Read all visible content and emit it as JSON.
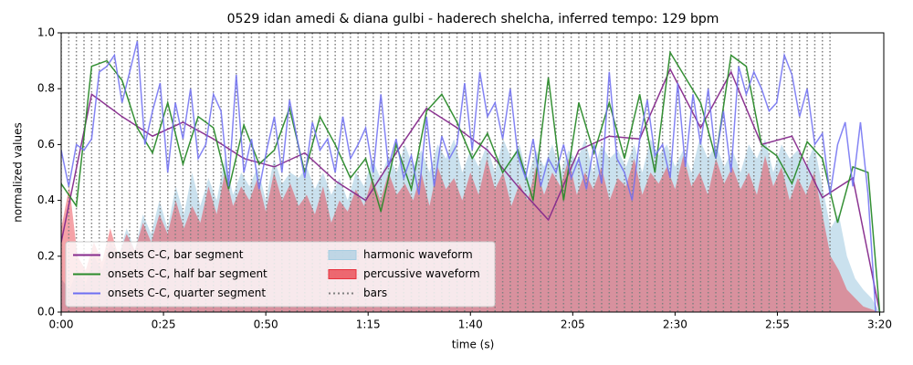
{
  "chart_data": {
    "type": "line",
    "title": "0529 idan amedi & diana gulbi - haderech shelcha, inferred tempo: 129 bpm",
    "x_label": "time (s)",
    "y_label": "normalized values",
    "xlim": [
      0,
      201
    ],
    "ylim": [
      0,
      1
    ],
    "xticks": [
      {
        "value": 0,
        "label": "0:00"
      },
      {
        "value": 25,
        "label": "0:25"
      },
      {
        "value": 50,
        "label": "0:50"
      },
      {
        "value": 75,
        "label": "1:15"
      },
      {
        "value": 100,
        "label": "1:40"
      },
      {
        "value": 125,
        "label": "2:05"
      },
      {
        "value": 150,
        "label": "2:30"
      },
      {
        "value": 175,
        "label": "2:55"
      },
      {
        "value": 200,
        "label": "3:20"
      }
    ],
    "yticks": [
      {
        "value": 0,
        "label": "0.0"
      },
      {
        "value": 0.2,
        "label": "0.2"
      },
      {
        "value": 0.4,
        "label": "0.4"
      },
      {
        "value": 0.6,
        "label": "0.6"
      },
      {
        "value": 0.8,
        "label": "0.8"
      },
      {
        "value": 1,
        "label": "1.0"
      }
    ],
    "grid": false,
    "legend": "lower left",
    "series": [
      {
        "name": "onsets C-C, bar segment",
        "style": "line",
        "color": "#862a8c",
        "x": [
          0,
          7.44,
          14.88,
          22.32,
          29.76,
          37.2,
          44.64,
          52.08,
          59.52,
          66.96,
          74.4,
          81.84,
          89.28,
          96.72,
          104.16,
          111.6,
          119.04,
          126.48,
          133.92,
          141.36,
          148.8,
          156.24,
          163.68,
          171.12,
          178.56,
          186,
          193.44,
          200
        ],
        "values": [
          0.25,
          0.78,
          0.7,
          0.63,
          0.68,
          0.62,
          0.55,
          0.52,
          0.57,
          0.47,
          0.4,
          0.57,
          0.73,
          0.66,
          0.58,
          0.45,
          0.33,
          0.58,
          0.63,
          0.62,
          0.87,
          0.66,
          0.86,
          0.6,
          0.63,
          0.41,
          0.48,
          0.0
        ]
      },
      {
        "name": "onsets C-C, half bar segment",
        "style": "line",
        "color": "#2a8a2a",
        "x": [
          0,
          3.72,
          7.44,
          11.16,
          14.88,
          18.6,
          22.32,
          26.04,
          29.76,
          33.48,
          37.2,
          40.92,
          44.64,
          48.36,
          52.08,
          55.8,
          59.52,
          63.24,
          66.96,
          70.68,
          74.4,
          78.12,
          81.84,
          85.56,
          89.28,
          93,
          96.72,
          100.44,
          104.16,
          107.88,
          111.6,
          115.32,
          119.04,
          122.76,
          126.48,
          130.2,
          133.92,
          137.64,
          141.36,
          145.08,
          148.8,
          152.52,
          156.24,
          159.96,
          163.68,
          167.4,
          171.12,
          174.84,
          178.56,
          182.28,
          186,
          189.72,
          193.44,
          197.16,
          200
        ],
        "values": [
          0.46,
          0.38,
          0.88,
          0.9,
          0.83,
          0.66,
          0.57,
          0.75,
          0.53,
          0.7,
          0.66,
          0.44,
          0.67,
          0.53,
          0.58,
          0.73,
          0.5,
          0.7,
          0.6,
          0.48,
          0.55,
          0.36,
          0.6,
          0.44,
          0.72,
          0.78,
          0.68,
          0.55,
          0.64,
          0.5,
          0.58,
          0.4,
          0.84,
          0.4,
          0.75,
          0.57,
          0.75,
          0.55,
          0.78,
          0.5,
          0.93,
          0.84,
          0.75,
          0.55,
          0.92,
          0.88,
          0.6,
          0.56,
          0.46,
          0.61,
          0.55,
          0.32,
          0.52,
          0.5,
          0.0
        ]
      },
      {
        "name": "onsets C-C, quarter segment",
        "style": "line",
        "color": "#6e6ef2",
        "x": [
          0,
          1.86,
          3.72,
          5.58,
          7.44,
          9.3,
          11.16,
          13.02,
          14.88,
          16.74,
          18.6,
          20.46,
          22.32,
          24.18,
          26.04,
          27.9,
          29.76,
          31.62,
          33.48,
          35.34,
          37.2,
          39.06,
          40.92,
          42.78,
          44.64,
          46.5,
          48.36,
          50.22,
          52.08,
          53.94,
          55.8,
          57.66,
          59.52,
          61.38,
          63.24,
          65.1,
          66.96,
          68.82,
          70.68,
          72.54,
          74.4,
          76.26,
          78.12,
          79.98,
          81.84,
          83.7,
          85.56,
          87.42,
          89.28,
          91.14,
          93,
          94.86,
          96.72,
          98.58,
          100.44,
          102.3,
          104.16,
          106.02,
          107.88,
          109.74,
          111.6,
          113.46,
          115.32,
          117.18,
          119.04,
          120.9,
          122.76,
          124.62,
          126.48,
          128.34,
          130.2,
          132.06,
          133.92,
          135.78,
          137.64,
          139.5,
          141.36,
          143.22,
          145.08,
          146.94,
          148.8,
          150.66,
          152.52,
          154.38,
          156.24,
          158.1,
          159.96,
          161.82,
          163.68,
          165.54,
          167.4,
          169.26,
          171.12,
          172.98,
          174.84,
          176.7,
          178.56,
          180.42,
          182.28,
          184.14,
          186,
          187.86,
          189.72,
          191.58,
          193.44,
          195.3,
          197.16,
          199.02
        ],
        "values": [
          0.58,
          0.45,
          0.6,
          0.58,
          0.62,
          0.86,
          0.88,
          0.92,
          0.75,
          0.86,
          0.97,
          0.6,
          0.72,
          0.82,
          0.5,
          0.75,
          0.62,
          0.8,
          0.55,
          0.6,
          0.78,
          0.72,
          0.45,
          0.85,
          0.5,
          0.62,
          0.44,
          0.58,
          0.7,
          0.5,
          0.76,
          0.62,
          0.48,
          0.68,
          0.58,
          0.62,
          0.5,
          0.7,
          0.55,
          0.6,
          0.66,
          0.5,
          0.78,
          0.52,
          0.62,
          0.48,
          0.56,
          0.42,
          0.7,
          0.45,
          0.63,
          0.55,
          0.6,
          0.82,
          0.58,
          0.86,
          0.7,
          0.75,
          0.62,
          0.8,
          0.56,
          0.48,
          0.62,
          0.45,
          0.55,
          0.5,
          0.6,
          0.48,
          0.55,
          0.44,
          0.6,
          0.46,
          0.86,
          0.55,
          0.5,
          0.4,
          0.62,
          0.76,
          0.56,
          0.6,
          0.48,
          0.82,
          0.52,
          0.78,
          0.6,
          0.8,
          0.55,
          0.72,
          0.5,
          0.88,
          0.78,
          0.86,
          0.8,
          0.72,
          0.75,
          0.92,
          0.85,
          0.7,
          0.8,
          0.6,
          0.64,
          0.42,
          0.6,
          0.68,
          0.45,
          0.68,
          0.42,
          0.0
        ]
      },
      {
        "name": "harmonic waveform",
        "style": "area",
        "color": "#a6cde2",
        "x": [
          0,
          2,
          4,
          6,
          8,
          10,
          12,
          14,
          16,
          18,
          20,
          22,
          24,
          26,
          28,
          30,
          32,
          34,
          36,
          38,
          40,
          42,
          44,
          46,
          48,
          50,
          52,
          54,
          56,
          58,
          60,
          62,
          64,
          66,
          68,
          70,
          72,
          74,
          76,
          78,
          80,
          82,
          84,
          86,
          88,
          90,
          92,
          94,
          96,
          98,
          100,
          102,
          104,
          106,
          108,
          110,
          112,
          114,
          116,
          118,
          120,
          122,
          124,
          126,
          128,
          130,
          132,
          134,
          136,
          138,
          140,
          142,
          144,
          146,
          148,
          150,
          152,
          154,
          156,
          158,
          160,
          162,
          164,
          166,
          168,
          170,
          172,
          174,
          176,
          178,
          180,
          182,
          184,
          186,
          188,
          190,
          192,
          194,
          196,
          198,
          200
        ],
        "values": [
          0.12,
          0.08,
          0.15,
          0.1,
          0.2,
          0.15,
          0.25,
          0.2,
          0.3,
          0.22,
          0.35,
          0.28,
          0.4,
          0.3,
          0.45,
          0.35,
          0.5,
          0.38,
          0.48,
          0.4,
          0.55,
          0.42,
          0.5,
          0.45,
          0.52,
          0.4,
          0.55,
          0.46,
          0.5,
          0.48,
          0.52,
          0.44,
          0.5,
          0.42,
          0.48,
          0.4,
          0.5,
          0.45,
          0.55,
          0.48,
          0.56,
          0.5,
          0.6,
          0.52,
          0.58,
          0.5,
          0.6,
          0.55,
          0.62,
          0.5,
          0.58,
          0.52,
          0.6,
          0.5,
          0.62,
          0.55,
          0.6,
          0.48,
          0.58,
          0.52,
          0.6,
          0.5,
          0.58,
          0.54,
          0.62,
          0.5,
          0.6,
          0.55,
          0.58,
          0.52,
          0.6,
          0.5,
          0.62,
          0.56,
          0.6,
          0.52,
          0.58,
          0.5,
          0.62,
          0.55,
          0.6,
          0.52,
          0.58,
          0.5,
          0.6,
          0.55,
          0.62,
          0.5,
          0.6,
          0.55,
          0.58,
          0.52,
          0.6,
          0.45,
          0.3,
          0.35,
          0.2,
          0.12,
          0.08,
          0.05,
          0.0
        ]
      },
      {
        "name": "percussive waveform",
        "style": "area",
        "color": "#e8303c",
        "x": [
          0,
          2,
          4,
          6,
          8,
          10,
          12,
          14,
          16,
          18,
          20,
          22,
          24,
          26,
          28,
          30,
          32,
          34,
          36,
          38,
          40,
          42,
          44,
          46,
          48,
          50,
          52,
          54,
          56,
          58,
          60,
          62,
          64,
          66,
          68,
          70,
          72,
          74,
          76,
          78,
          80,
          82,
          84,
          86,
          88,
          90,
          92,
          94,
          96,
          98,
          100,
          102,
          104,
          106,
          108,
          110,
          112,
          114,
          116,
          118,
          120,
          122,
          124,
          126,
          128,
          130,
          132,
          134,
          136,
          138,
          140,
          142,
          144,
          146,
          148,
          150,
          152,
          154,
          156,
          158,
          160,
          162,
          164,
          166,
          168,
          170,
          172,
          174,
          176,
          178,
          180,
          182,
          184,
          186,
          188,
          190,
          192,
          194,
          196,
          198,
          200
        ],
        "values": [
          0.3,
          0.45,
          0.2,
          0.15,
          0.25,
          0.18,
          0.3,
          0.2,
          0.28,
          0.22,
          0.32,
          0.25,
          0.35,
          0.28,
          0.4,
          0.3,
          0.38,
          0.32,
          0.45,
          0.35,
          0.5,
          0.38,
          0.45,
          0.4,
          0.48,
          0.36,
          0.5,
          0.4,
          0.46,
          0.38,
          0.42,
          0.35,
          0.45,
          0.32,
          0.4,
          0.36,
          0.44,
          0.38,
          0.48,
          0.4,
          0.5,
          0.42,
          0.46,
          0.4,
          0.5,
          0.38,
          0.52,
          0.44,
          0.48,
          0.4,
          0.5,
          0.42,
          0.55,
          0.44,
          0.5,
          0.38,
          0.46,
          0.4,
          0.52,
          0.42,
          0.5,
          0.45,
          0.55,
          0.42,
          0.5,
          0.44,
          0.52,
          0.4,
          0.48,
          0.45,
          0.55,
          0.42,
          0.5,
          0.46,
          0.52,
          0.44,
          0.56,
          0.45,
          0.5,
          0.42,
          0.55,
          0.46,
          0.52,
          0.44,
          0.5,
          0.42,
          0.56,
          0.45,
          0.52,
          0.4,
          0.48,
          0.42,
          0.5,
          0.35,
          0.2,
          0.15,
          0.08,
          0.05,
          0.02,
          0.01,
          0.0
        ]
      },
      {
        "name": "bars",
        "style": "vlines",
        "color": "#808080",
        "x": [
          0,
          1.86,
          3.72,
          5.58,
          7.44,
          9.3,
          11.16,
          13.02,
          14.88,
          16.74,
          18.6,
          20.46,
          22.32,
          24.18,
          26.04,
          27.9,
          29.76,
          31.62,
          33.48,
          35.34,
          37.2,
          39.06,
          40.92,
          42.78,
          44.64,
          46.5,
          48.36,
          50.22,
          52.08,
          53.94,
          55.8,
          57.66,
          59.52,
          61.38,
          63.24,
          65.1,
          66.96,
          68.82,
          70.68,
          72.54,
          74.4,
          76.26,
          78.12,
          79.98,
          81.84,
          83.7,
          85.56,
          87.42,
          89.28,
          91.14,
          93,
          94.86,
          96.72,
          98.58,
          100.44,
          102.3,
          104.16,
          106.02,
          107.88,
          109.74,
          111.6,
          113.46,
          115.32,
          117.18,
          119.04,
          120.9,
          122.76,
          124.62,
          126.48,
          128.34,
          130.2,
          132.06,
          133.92,
          135.78,
          137.64,
          139.5,
          141.36,
          143.22,
          145.08,
          146.94,
          148.8,
          150.66,
          152.52,
          154.38,
          156.24,
          158.1,
          159.96,
          161.82,
          163.68,
          165.54,
          167.4,
          169.26,
          171.12,
          172.98,
          174.84,
          176.7,
          178.56,
          180.42,
          182.28,
          184.14,
          186,
          187.86
        ]
      }
    ]
  }
}
